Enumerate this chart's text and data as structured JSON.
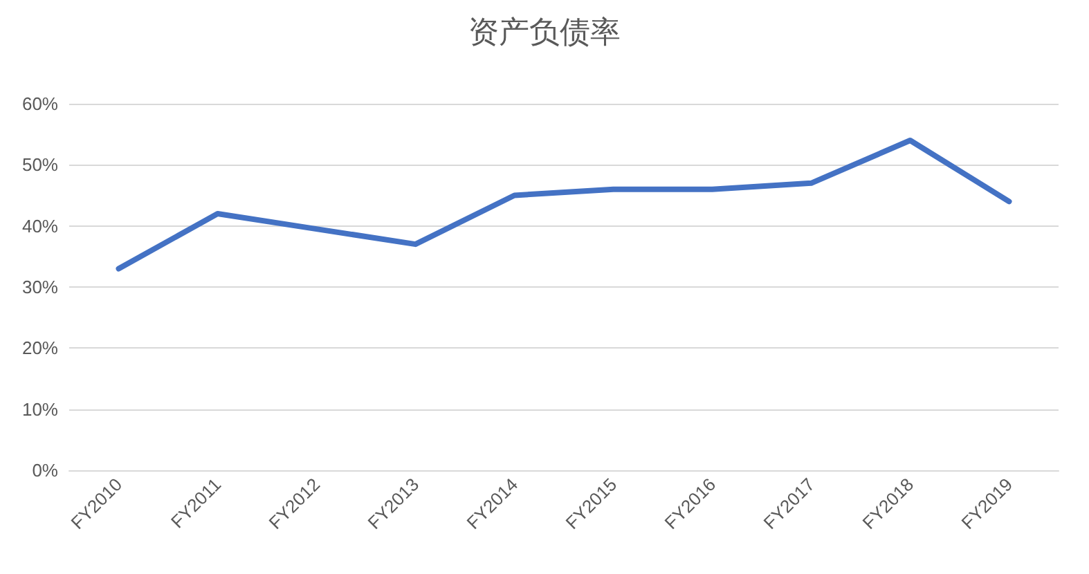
{
  "chart_data": {
    "type": "line",
    "title": "资产负债率",
    "categories": [
      "FY2010",
      "FY2011",
      "FY2012",
      "FY2013",
      "FY2014",
      "FY2015",
      "FY2016",
      "FY2017",
      "FY2018",
      "FY2019"
    ],
    "series": [
      {
        "color": "#4472c4",
        "values": [
          33,
          42,
          39.5,
          37,
          45,
          46,
          46,
          47,
          54,
          44
        ]
      }
    ],
    "ylim": [
      0,
      60
    ],
    "yticks": [
      {
        "value": 0,
        "label": "0%"
      },
      {
        "value": 10,
        "label": "10%"
      },
      {
        "value": 20,
        "label": "20%"
      },
      {
        "value": 30,
        "label": "30%"
      },
      {
        "value": 40,
        "label": "40%"
      },
      {
        "value": 50,
        "label": "50%"
      },
      {
        "value": 60,
        "label": "60%"
      }
    ],
    "grid": "y",
    "marker": "none",
    "line_style": "solid"
  }
}
